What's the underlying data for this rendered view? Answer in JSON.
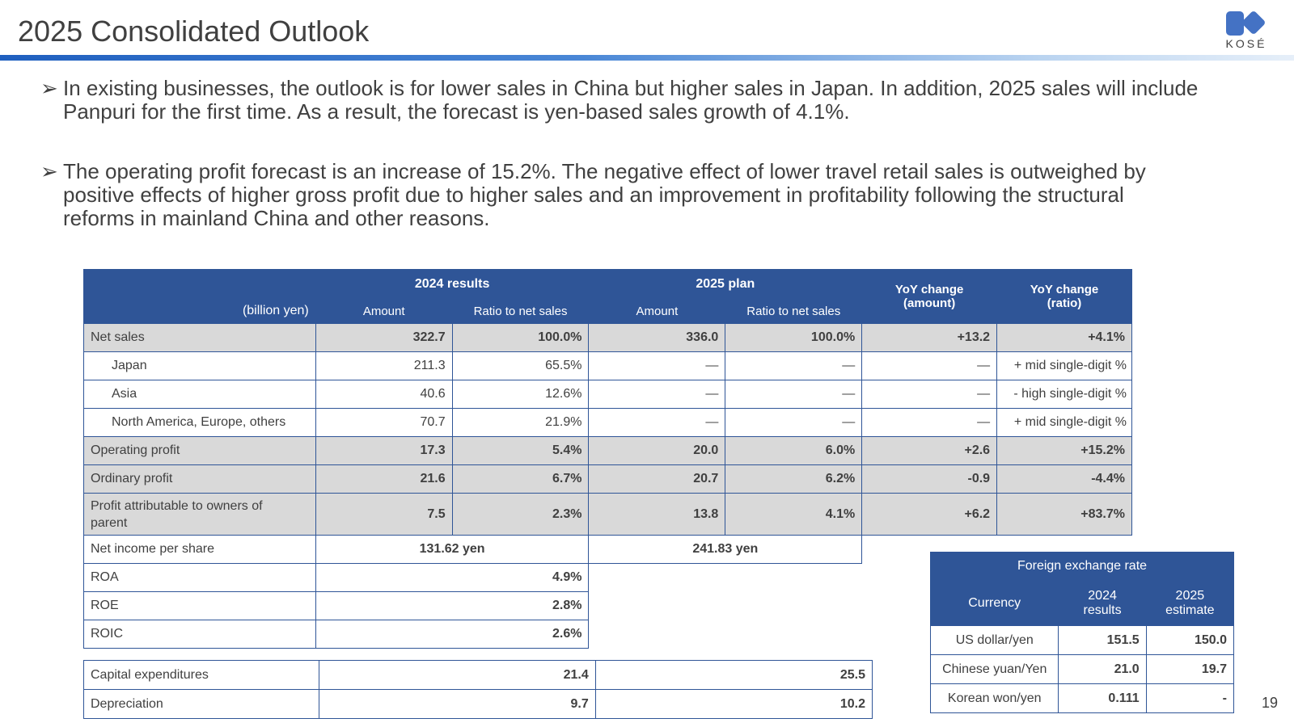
{
  "page": {
    "title": "2025 Consolidated Outlook",
    "logo_text": "KOSÉ",
    "page_number": "19",
    "accent_color": "#2f5597"
  },
  "bullets": [
    {
      "icon": "arrow-bullet-icon",
      "line1": "In existing businesses, the outlook is for lower sales in China but higher sales in Japan. In addition, 2025 sales will include",
      "line2": "Panpuri for the first time. As a result, the forecast is yen-based sales growth of 4.1%."
    },
    {
      "icon": "arrow-bullet-icon",
      "line1": "The operating profit forecast is an increase of 15.2%. The negative effect of lower travel retail sales is outweighed by",
      "line2": "positive effects of higher gross profit due to higher sales and an improvement in profitability following the structural",
      "line3": "reforms in mainland China and other reasons."
    }
  ],
  "main_table": {
    "unit": "(billion yen)",
    "group_2024": "2024 results",
    "group_2025": "2025 plan",
    "yoy_amount_1": "YoY change",
    "yoy_amount_2": "(amount)",
    "yoy_ratio_1": "YoY change",
    "yoy_ratio_2": "(ratio)",
    "sub_amount": "Amount",
    "sub_ratio": "Ratio to net sales",
    "rows": [
      {
        "label": "Net sales",
        "a24": "322.7",
        "r24": "100.0%",
        "a25": "336.0",
        "r25": "100.0%",
        "yoy_a": "+13.2",
        "yoy_r": "+4.1%"
      },
      {
        "label": "Japan",
        "a24": "211.3",
        "r24": "65.5%",
        "a25": "—",
        "r25": "—",
        "yoy_a": "—",
        "yoy_r": "+ mid single-digit %"
      },
      {
        "label": "Asia",
        "a24": "40.6",
        "r24": "12.6%",
        "a25": "—",
        "r25": "—",
        "yoy_a": "—",
        "yoy_r": "- high single-digit %"
      },
      {
        "label": "North America, Europe, others",
        "a24": "70.7",
        "r24": "21.9%",
        "a25": "—",
        "r25": "—",
        "yoy_a": "—",
        "yoy_r": "+ mid single-digit %"
      },
      {
        "label": "Operating profit",
        "a24": "17.3",
        "r24": "5.4%",
        "a25": "20.0",
        "r25": "6.0%",
        "yoy_a": "+2.6",
        "yoy_r": "+15.2%"
      },
      {
        "label": "Ordinary profit",
        "a24": "21.6",
        "r24": "6.7%",
        "a25": "20.7",
        "r25": "6.2%",
        "yoy_a": "-0.9",
        "yoy_r": "-4.4%"
      },
      {
        "label_1": "Profit attributable to owners of",
        "label_2": "parent",
        "a24": "7.5",
        "r24": "2.3%",
        "a25": "13.8",
        "r25": "4.1%",
        "yoy_a": "+6.2",
        "yoy_r": "+83.7%"
      }
    ],
    "eps": {
      "label": "Net income per share",
      "v24": "131.62 yen",
      "v25": "241.83 yen"
    },
    "ratios": [
      {
        "label": "ROA",
        "value": "4.9%"
      },
      {
        "label": "ROE",
        "value": "2.8%"
      },
      {
        "label": "ROIC",
        "value": "2.6%"
      }
    ],
    "capex": [
      {
        "label": "Capital expenditures",
        "v24": "21.4",
        "v25": "25.5"
      },
      {
        "label": "Depreciation",
        "v24": "9.7",
        "v25": "10.2"
      }
    ]
  },
  "fx_table": {
    "title": "Foreign exchange rate",
    "col_currency": "Currency",
    "col_2024_1": "2024",
    "col_2024_2": "results",
    "col_2025_1": "2025",
    "col_2025_2": "estimate",
    "rows": [
      {
        "currency": "US dollar/yen",
        "v24": "151.5",
        "v25": "150.0"
      },
      {
        "currency": "Chinese yuan/Yen",
        "v24": "21.0",
        "v25": "19.7"
      },
      {
        "currency": "Korean won/yen",
        "v24": "0.111",
        "v25": "-"
      }
    ]
  }
}
